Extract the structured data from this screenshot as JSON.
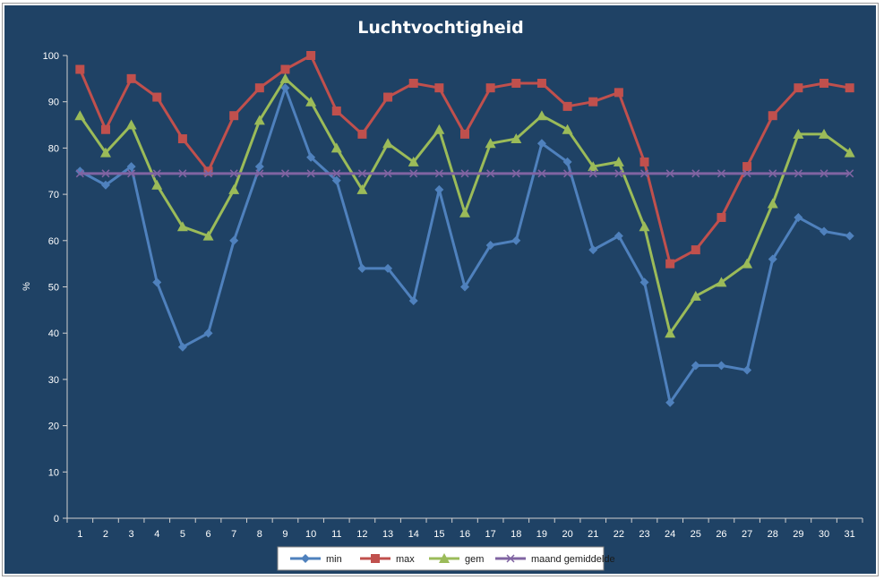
{
  "chart_data": {
    "type": "line",
    "title": "Luchtvochtigheid",
    "ylabel": "%",
    "xlabel": "",
    "ylim": [
      0,
      100
    ],
    "yticks": [
      0,
      10,
      20,
      30,
      40,
      50,
      60,
      70,
      80,
      90,
      100
    ],
    "categories": [
      "1",
      "2",
      "3",
      "4",
      "5",
      "6",
      "7",
      "8",
      "9",
      "10",
      "11",
      "12",
      "13",
      "14",
      "15",
      "16",
      "17",
      "18",
      "19",
      "20",
      "21",
      "22",
      "23",
      "24",
      "25",
      "26",
      "27",
      "28",
      "29",
      "30",
      "31"
    ],
    "grid": false,
    "legend": "bottom",
    "background": "#1f4265",
    "series": [
      {
        "name": "min",
        "color": "#4f81bd",
        "marker": "diamond",
        "values": [
          75,
          72,
          76,
          51,
          37,
          40,
          60,
          76,
          93,
          78,
          73,
          54,
          54,
          47,
          71,
          50,
          59,
          60,
          81,
          77,
          58,
          61,
          51,
          25,
          33,
          33,
          32,
          56,
          65,
          62,
          61
        ]
      },
      {
        "name": "max",
        "color": "#c0504d",
        "marker": "square",
        "values": [
          97,
          84,
          95,
          91,
          82,
          75,
          87,
          93,
          97,
          100,
          88,
          83,
          91,
          94,
          93,
          83,
          93,
          94,
          94,
          89,
          90,
          92,
          77,
          55,
          58,
          65,
          76,
          87,
          93,
          94,
          93
        ]
      },
      {
        "name": "gem",
        "color": "#9bbb59",
        "marker": "triangle",
        "values": [
          87,
          79,
          85,
          72,
          63,
          61,
          71,
          86,
          95,
          90,
          80,
          71,
          81,
          77,
          84,
          66,
          81,
          82,
          87,
          84,
          76,
          77,
          63,
          40,
          48,
          51,
          55,
          68,
          83,
          83,
          79
        ]
      },
      {
        "name": "maand gemiddelde",
        "color": "#8064a2",
        "marker": "x",
        "values": [
          74.5,
          74.5,
          74.5,
          74.5,
          74.5,
          74.5,
          74.5,
          74.5,
          74.5,
          74.5,
          74.5,
          74.5,
          74.5,
          74.5,
          74.5,
          74.5,
          74.5,
          74.5,
          74.5,
          74.5,
          74.5,
          74.5,
          74.5,
          74.5,
          74.5,
          74.5,
          74.5,
          74.5,
          74.5,
          74.5,
          74.5
        ]
      }
    ]
  }
}
